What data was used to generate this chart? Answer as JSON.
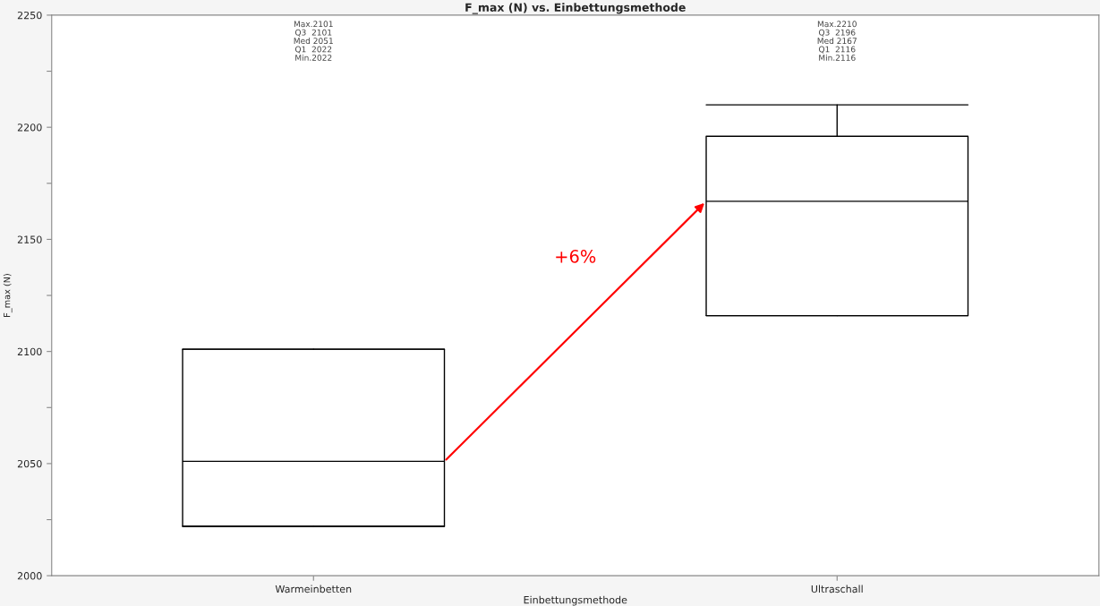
{
  "chart_data": {
    "type": "box",
    "title": "F_max (N) vs. Einbettungsmethode",
    "xlabel": "Einbettungsmethode",
    "ylabel": "F_max (N)",
    "categories": [
      "Warmeinbetten",
      "Ultraschall"
    ],
    "boxes": [
      {
        "low": 2022,
        "q1": 2022,
        "median": 2051,
        "q3": 2101,
        "high": 2101
      },
      {
        "low": 2116,
        "q1": 2116,
        "median": 2167,
        "q3": 2196,
        "high": 2210
      }
    ],
    "ylim": [
      2000,
      2250
    ],
    "yticks": [
      2000,
      {
        "value": 2025,
        "label": null
      },
      2050,
      {
        "value": 2075,
        "label": null
      },
      2100,
      {
        "value": 2125,
        "label": null
      },
      2150,
      {
        "value": 2175,
        "label": null
      },
      2200,
      {
        "value": 2225,
        "label": null
      },
      2250
    ],
    "annotations": [
      "Max.2101\nQ3  2101\nMed 2051\nQ1  2022\nMin.2022",
      "Max.2210\nQ3  2196\nMed 2167\nQ1  2116\nMin.2116",
      "+6%"
    ],
    "grid": false
  }
}
